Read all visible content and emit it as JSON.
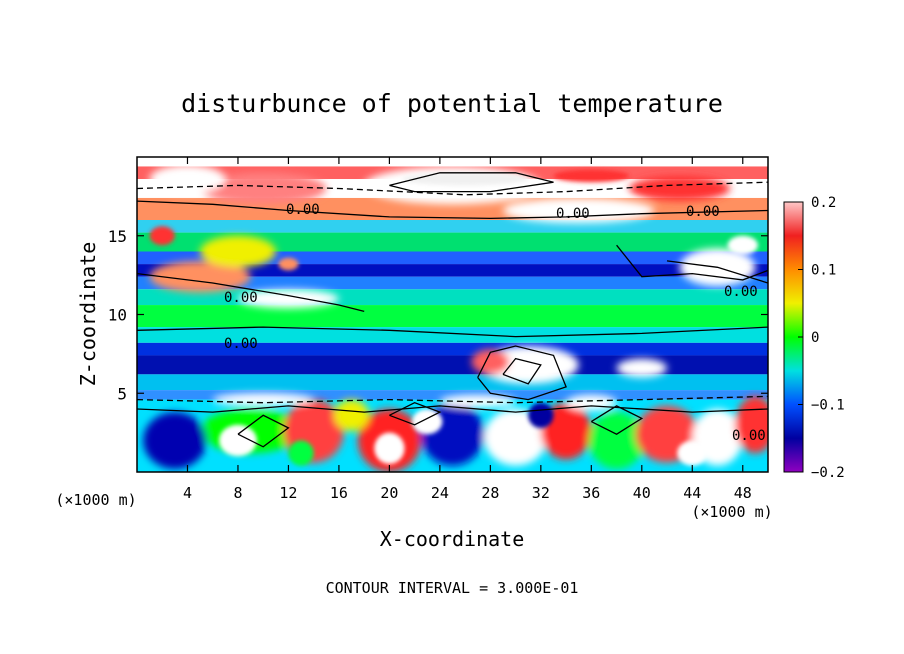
{
  "chart_data": {
    "type": "heatmap",
    "title": "disturbunce of potential temperature",
    "xlabel": "X-coordinate",
    "ylabel": "Z-coordinate",
    "x_unit": "(×1000 m)",
    "y_unit": "(×1000 m)",
    "xlim": [
      0,
      50
    ],
    "ylim": [
      0,
      20
    ],
    "x_ticks": [
      4,
      8,
      12,
      16,
      20,
      24,
      28,
      32,
      36,
      40,
      44,
      48
    ],
    "y_ticks": [
      5,
      10,
      15
    ],
    "colorbar": {
      "range": [
        -0.2,
        0.2
      ],
      "tick_values": [
        0.2,
        0.1,
        0,
        -0.1,
        -0.2
      ],
      "tick_labels": [
        "0.2",
        "0.1",
        "0",
        "−0.1",
        "−0.2"
      ],
      "colors": [
        "#ffc8c8",
        "#f02020",
        "#ff8c00",
        "#f0f000",
        "#00ff00",
        "#00e0e0",
        "#0050ff",
        "#0000a0",
        "#9000c0"
      ]
    },
    "contour_labels": [
      "0.00",
      "0.00",
      "0.00",
      "0.00",
      "0.00",
      "0.00",
      "0.00"
    ],
    "footer": "CONTOUR INTERVAL = 3.000E-01"
  }
}
